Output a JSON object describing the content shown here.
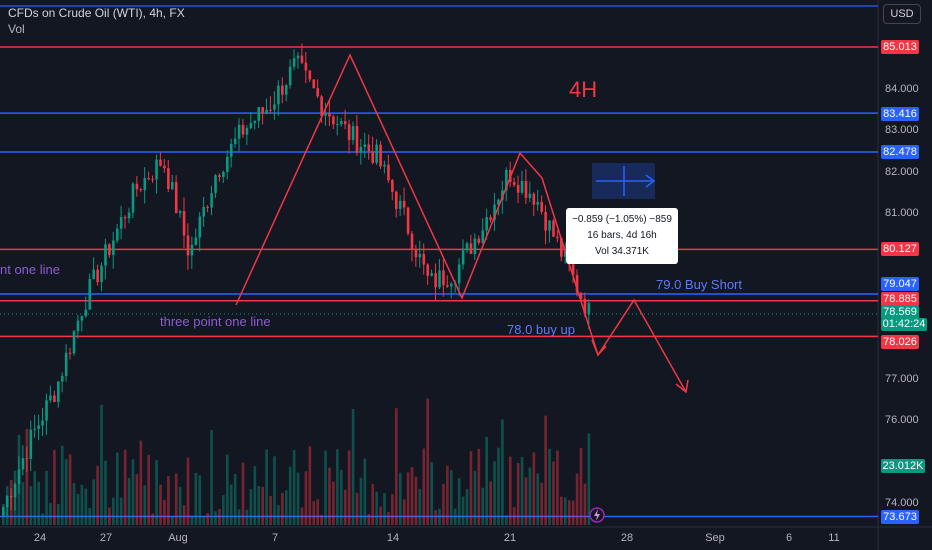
{
  "header": {
    "title": "CFDs on Crude Oil (WTI), 4h, FX",
    "vol_label": "Vol"
  },
  "currency_button": "USD",
  "price_axis": {
    "ticks": [
      "84.000",
      "83.000",
      "82.000",
      "81.000",
      "77.000",
      "76.000",
      "74.000"
    ],
    "badges": [
      {
        "label": "85.013",
        "color": "#f23645"
      },
      {
        "label": "83.416",
        "color": "#2962ff"
      },
      {
        "label": "82.478",
        "color": "#2962ff"
      },
      {
        "label": "80.127",
        "color": "#f23645"
      },
      {
        "label": "79.047",
        "color": "#2962ff"
      },
      {
        "label": "78.885",
        "color": "#f23645"
      },
      {
        "label": "78.569",
        "color": "#089981"
      },
      {
        "label": "78.026",
        "color": "#f23645"
      },
      {
        "label": "23.012K",
        "color": "#089981"
      },
      {
        "label": "73.673",
        "color": "#2962ff"
      }
    ],
    "countdown": "01:42:24"
  },
  "time_axis": {
    "ticks": [
      "24",
      "27",
      "Aug",
      "7",
      "14",
      "21",
      "28",
      "Sep",
      "6",
      "11"
    ]
  },
  "annotations": {
    "timeframe": "4H",
    "buy_short": "79.0 Buy Short",
    "buy_up": "78.0  buy up",
    "three_point_bottom": "three point one line",
    "three_point_left": "nt one line"
  },
  "measure_box": {
    "line1": "−0.859 (−1.05%) −859",
    "line2": "16 bars, 4d 16h",
    "line3": "Vol 34.371K"
  },
  "colors": {
    "up": "#089981",
    "down": "#f23645",
    "blue": "#2962ff",
    "bg": "#131722"
  },
  "chart_data": {
    "type": "candlestick",
    "symbol": "CFDs on Crude Oil (WTI)",
    "interval": "4h",
    "price_range": [
      73.5,
      86.0
    ],
    "horizontal_levels": {
      "red": [
        85.013,
        80.127,
        78.885,
        78.026
      ],
      "blue": [
        83.416,
        82.478,
        79.047,
        73.673
      ]
    },
    "last_price": 78.569,
    "last_volume": "23.012K",
    "key_closes": [
      73.9,
      75.5,
      76.8,
      78.8,
      80.2,
      81.6,
      82.3,
      80.0,
      82.0,
      83.0,
      83.6,
      84.6,
      83.6,
      82.9,
      82.4,
      81.0,
      79.3,
      79.6,
      80.7,
      82.0,
      81.4,
      80.0,
      78.6
    ]
  }
}
